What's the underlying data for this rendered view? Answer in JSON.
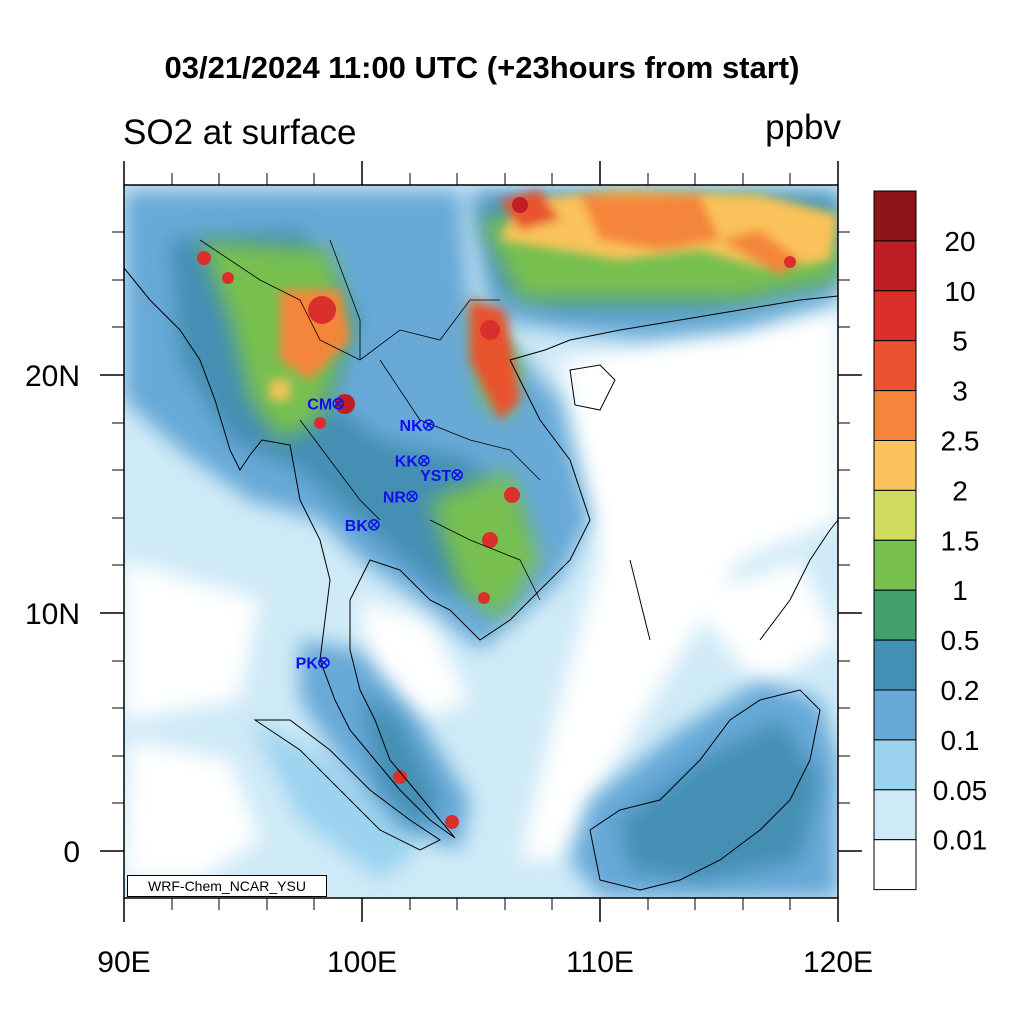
{
  "header": {
    "title": "03/21/2024 11:00 UTC (+23hours from start)",
    "subtitle": "SO2 at surface",
    "units": "ppbv"
  },
  "map": {
    "lon_range": [
      90,
      120
    ],
    "lat_range": [
      -2,
      28
    ],
    "x_ticks": [
      "90E",
      "100E",
      "110E",
      "120E"
    ],
    "y_ticks": [
      "20N",
      "10N",
      "0"
    ],
    "credit": "WRF-Chem_NCAR_YSU",
    "stations": [
      {
        "name": "CM",
        "lon": 99.0,
        "lat": 18.8
      },
      {
        "name": "NK",
        "lon": 102.8,
        "lat": 17.9
      },
      {
        "name": "KK",
        "lon": 102.6,
        "lat": 16.4
      },
      {
        "name": "YST",
        "lon": 104.0,
        "lat": 15.8
      },
      {
        "name": "NR",
        "lon": 102.1,
        "lat": 14.9
      },
      {
        "name": "BK",
        "lon": 100.5,
        "lat": 13.7
      },
      {
        "name": "PK",
        "lon": 98.4,
        "lat": 7.9
      }
    ]
  },
  "colorbar": {
    "labels": [
      "20",
      "10",
      "5",
      "3",
      "2.5",
      "2",
      "1.5",
      "1",
      "0.5",
      "0.2",
      "0.1",
      "0.05",
      "0.01"
    ],
    "colors": [
      "#8f1519",
      "#be1f24",
      "#db2f2c",
      "#e9532f",
      "#f4853a",
      "#f9c25a",
      "#cfdc5d",
      "#77c04f",
      "#42a06c",
      "#448fb4",
      "#68a9d7",
      "#9bd3ef",
      "#cfeaf7",
      "#ffffff"
    ]
  }
}
